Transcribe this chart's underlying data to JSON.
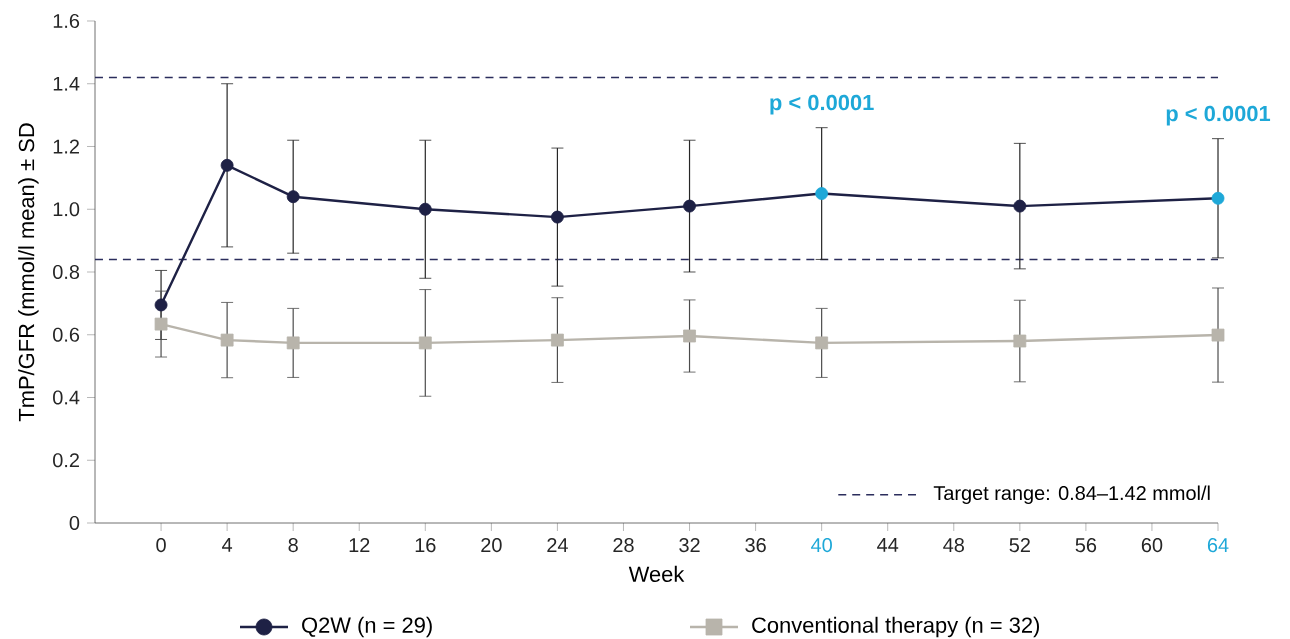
{
  "chart_data": {
    "type": "line",
    "xlabel": "Week",
    "ylabel": "TmP/GFR (mmol/l mean) ± SD",
    "x": [
      0,
      4,
      8,
      16,
      24,
      32,
      40,
      52,
      64
    ],
    "xlim": [
      -4,
      64
    ],
    "xticks": [
      0,
      4,
      8,
      12,
      16,
      20,
      24,
      28,
      32,
      36,
      40,
      44,
      48,
      52,
      56,
      60,
      64
    ],
    "ylim": [
      0,
      1.6
    ],
    "yticks": [
      {
        "value": 0,
        "label": "0"
      },
      {
        "value": 0.2,
        "label": "0.2"
      },
      {
        "value": 0.4,
        "label": "0.4"
      },
      {
        "value": 0.6,
        "label": "0.6"
      },
      {
        "value": 0.8,
        "label": "0.8"
      },
      {
        "value": 1.0,
        "label": "1.0"
      },
      {
        "value": 1.2,
        "label": "1.2"
      },
      {
        "value": 1.4,
        "label": "1.4"
      },
      {
        "value": 1.6,
        "label": "1.6"
      }
    ],
    "series": [
      {
        "name": "Q2W (n = 29)",
        "color": "#1e2145",
        "marker": "circle",
        "values": [
          0.695,
          1.14,
          1.04,
          1.0,
          0.975,
          1.01,
          1.05,
          1.01,
          1.035
        ],
        "errors": [
          0.11,
          0.26,
          0.18,
          0.22,
          0.22,
          0.21,
          0.21,
          0.2,
          0.19
        ],
        "colors": [
          "#1e2145",
          "#1e2145",
          "#1e2145",
          "#1e2145",
          "#1e2145",
          "#1e2145",
          "#1ea8d8",
          "#1e2145",
          "#1ea8d8"
        ]
      },
      {
        "name": "Conventional therapy (n = 32)",
        "color": "#b8b4ab",
        "marker": "square",
        "values": [
          0.634,
          0.583,
          0.574,
          0.574,
          0.583,
          0.596,
          0.574,
          0.58,
          0.599
        ],
        "errors": [
          0.105,
          0.12,
          0.11,
          0.17,
          0.135,
          0.115,
          0.11,
          0.13,
          0.15
        ]
      }
    ],
    "ref_lines": [
      {
        "axis": "y",
        "value": 1.42,
        "color": "#2b2d5c",
        "line_style": "dashed"
      },
      {
        "axis": "y",
        "value": 0.84,
        "color": "#2b2d5c",
        "line_style": "dashed",
        "label": "Target range: 0.84–1.42 mmol/l"
      }
    ],
    "annotations": [
      "p < 0.0001",
      "p < 0.0001"
    ],
    "legend": "bottom"
  }
}
